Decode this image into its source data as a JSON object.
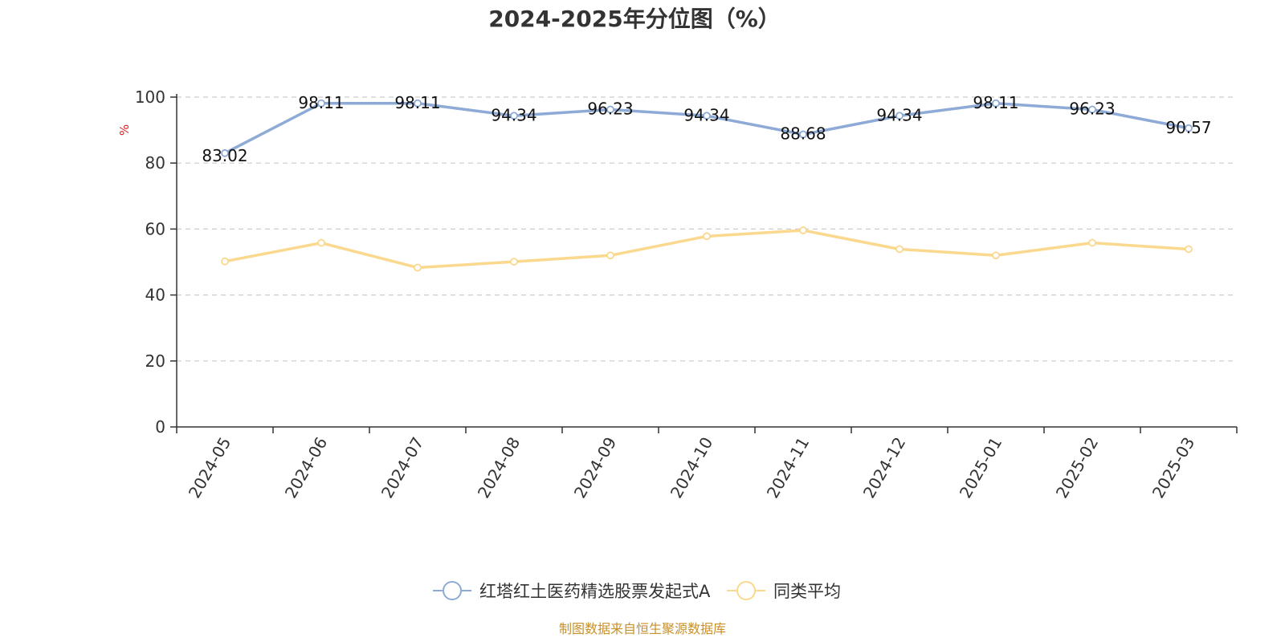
{
  "chart_data": {
    "type": "line",
    "title": "2024-2025年分位图（%）",
    "ylabel": "%",
    "xlabel": "",
    "ylim": [
      0,
      100
    ],
    "yticks": [
      0,
      20,
      40,
      60,
      80,
      100
    ],
    "grid": true,
    "legend_position": "bottom",
    "categories": [
      "2024-05",
      "2024-06",
      "2024-07",
      "2024-08",
      "2024-09",
      "2024-10",
      "2024-11",
      "2024-12",
      "2025-01",
      "2025-02",
      "2025-03"
    ],
    "series": [
      {
        "name": "红塔红土医药精选股票发起式A",
        "color": "#8eaad6",
        "values": [
          83.02,
          98.11,
          98.11,
          94.34,
          96.23,
          94.34,
          88.68,
          94.34,
          98.11,
          96.23,
          90.57
        ],
        "labels": [
          "83.02",
          "98.11",
          "98.11",
          "94.34",
          "96.23",
          "94.34",
          "88.68",
          "94.34",
          "98.11",
          "96.23",
          "90.57"
        ],
        "show_labels": true
      },
      {
        "name": "同类平均",
        "color": "#fad88e",
        "values": [
          50.2,
          55.8,
          48.3,
          50.1,
          52.0,
          57.8,
          59.6,
          53.9,
          52.0,
          55.8,
          53.9
        ],
        "show_labels": false
      }
    ]
  },
  "footer": {
    "source": "制图数据来自恒生聚源数据库"
  }
}
